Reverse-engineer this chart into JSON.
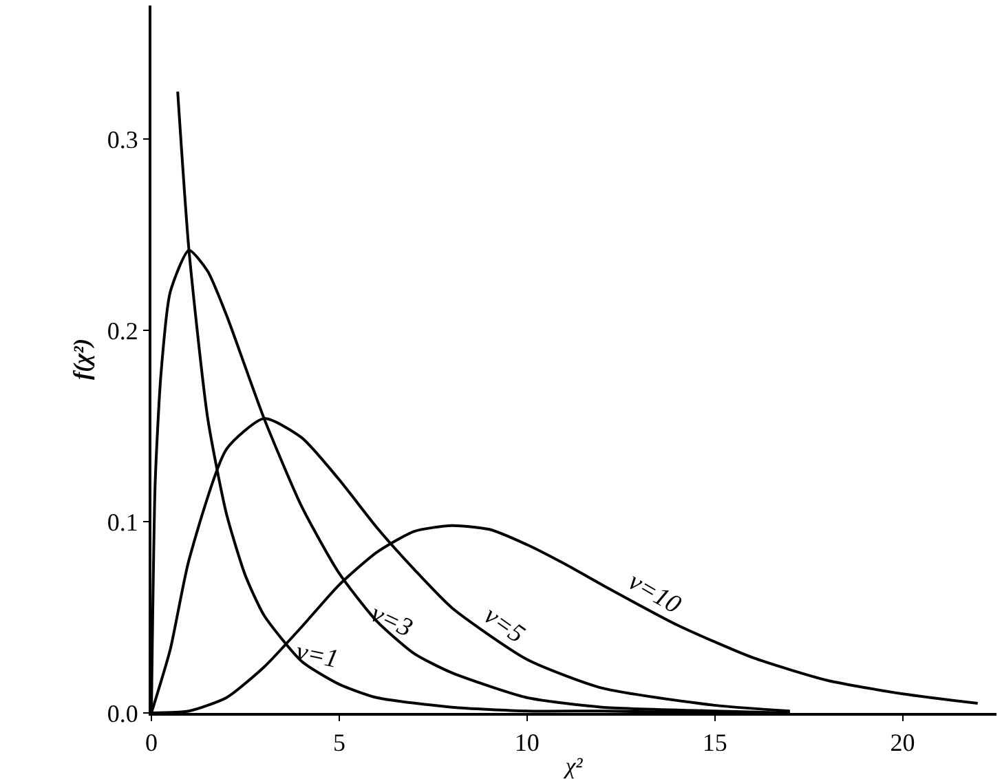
{
  "chart_data": {
    "type": "line",
    "xlabel": "χ²",
    "ylabel": "f(χ²)",
    "xlim": [
      0,
      22.5
    ],
    "ylim": [
      0,
      0.37
    ],
    "xticks": [
      0,
      5,
      10,
      15,
      20
    ],
    "yticks": [
      {
        "value": 0,
        "label": "0.0"
      },
      {
        "value": 0.1,
        "label": "0.1"
      },
      {
        "value": 0.2,
        "label": "0.2"
      },
      {
        "value": 0.3,
        "label": "0.3"
      }
    ],
    "grid": false,
    "legend": false,
    "marker": "none",
    "line_style": "solid",
    "series": [
      {
        "name": "ν=1",
        "color": "#000000",
        "x": [
          0.7,
          1,
          1.5,
          2,
          2.5,
          3,
          4,
          5,
          6,
          8,
          10,
          12,
          15,
          17
        ],
        "values": [
          0.325,
          0.242,
          0.154,
          0.104,
          0.072,
          0.051,
          0.027,
          0.015,
          0.008,
          0.003,
          0.001,
          0.001,
          0,
          0
        ]
      },
      {
        "name": "ν=3",
        "color": "#000000",
        "x": [
          0,
          0.1,
          0.25,
          0.5,
          1,
          1.5,
          2,
          3,
          4,
          5,
          6,
          7,
          8,
          10,
          12,
          15,
          17
        ],
        "values": [
          0,
          0.12,
          0.176,
          0.22,
          0.242,
          0.231,
          0.208,
          0.154,
          0.108,
          0.073,
          0.048,
          0.031,
          0.021,
          0.008,
          0.003,
          0.001,
          0
        ]
      },
      {
        "name": "ν=5",
        "color": "#000000",
        "x": [
          0,
          0.5,
          1,
          2,
          3,
          4,
          5,
          6,
          7,
          8,
          10,
          12,
          15,
          17
        ],
        "values": [
          0,
          0.033,
          0.08,
          0.138,
          0.154,
          0.144,
          0.122,
          0.097,
          0.075,
          0.055,
          0.028,
          0.013,
          0.004,
          0.001
        ]
      },
      {
        "name": "ν=10",
        "color": "#000000",
        "x": [
          0,
          1,
          2,
          3,
          4,
          5,
          6,
          7,
          8,
          9,
          10,
          11,
          12,
          14,
          16,
          18,
          20,
          22
        ],
        "values": [
          0,
          0.001,
          0.008,
          0.024,
          0.045,
          0.067,
          0.084,
          0.095,
          0.098,
          0.096,
          0.088,
          0.078,
          0.067,
          0.046,
          0.029,
          0.017,
          0.01,
          0.005
        ]
      }
    ]
  }
}
